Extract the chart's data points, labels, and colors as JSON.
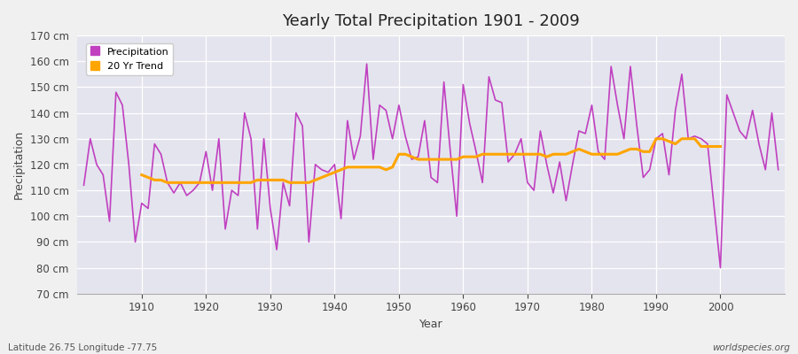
{
  "title": "Yearly Total Precipitation 1901 - 2009",
  "xlabel": "Year",
  "ylabel": "Precipitation",
  "footer_left": "Latitude 26.75 Longitude -77.75",
  "footer_right": "worldspecies.org",
  "ylim": [
    70,
    170
  ],
  "ytick_step": 10,
  "years": [
    1901,
    1902,
    1903,
    1904,
    1905,
    1906,
    1907,
    1908,
    1909,
    1910,
    1911,
    1912,
    1913,
    1914,
    1915,
    1916,
    1917,
    1918,
    1919,
    1920,
    1921,
    1922,
    1923,
    1924,
    1925,
    1926,
    1927,
    1928,
    1929,
    1930,
    1931,
    1932,
    1933,
    1934,
    1935,
    1936,
    1937,
    1938,
    1939,
    1940,
    1941,
    1942,
    1943,
    1944,
    1945,
    1946,
    1947,
    1948,
    1949,
    1950,
    1951,
    1952,
    1953,
    1954,
    1955,
    1956,
    1957,
    1958,
    1959,
    1960,
    1961,
    1962,
    1963,
    1964,
    1965,
    1966,
    1967,
    1968,
    1969,
    1970,
    1971,
    1972,
    1973,
    1974,
    1975,
    1976,
    1977,
    1978,
    1979,
    1980,
    1981,
    1982,
    1983,
    1984,
    1985,
    1986,
    1987,
    1988,
    1989,
    1990,
    1991,
    1992,
    1993,
    1994,
    1995,
    1996,
    1997,
    1998,
    1999,
    2000,
    2001,
    2002,
    2003,
    2004,
    2005,
    2006,
    2007,
    2008,
    2009
  ],
  "precip": [
    112,
    130,
    120,
    116,
    98,
    148,
    143,
    120,
    90,
    105,
    103,
    128,
    124,
    113,
    109,
    113,
    108,
    110,
    113,
    125,
    110,
    130,
    95,
    110,
    108,
    140,
    130,
    95,
    130,
    103,
    87,
    113,
    104,
    140,
    135,
    90,
    120,
    118,
    117,
    120,
    99,
    137,
    122,
    131,
    159,
    122,
    143,
    141,
    130,
    143,
    131,
    122,
    123,
    137,
    115,
    113,
    152,
    125,
    100,
    151,
    136,
    125,
    113,
    154,
    145,
    144,
    121,
    124,
    130,
    113,
    110,
    133,
    120,
    109,
    121,
    106,
    120,
    133,
    132,
    143,
    125,
    122,
    158,
    143,
    130,
    158,
    135,
    115,
    118,
    130,
    132,
    116,
    141,
    155,
    130,
    131,
    130,
    128,
    104,
    80,
    147,
    140,
    133,
    130,
    141,
    128,
    118,
    140,
    118
  ],
  "trend_years": [
    1910,
    1911,
    1912,
    1913,
    1914,
    1915,
    1916,
    1917,
    1918,
    1919,
    1920,
    1921,
    1922,
    1923,
    1924,
    1925,
    1926,
    1927,
    1928,
    1929,
    1930,
    1931,
    1932,
    1933,
    1934,
    1935,
    1936,
    1937,
    1938,
    1939,
    1940,
    1941,
    1942,
    1943,
    1944,
    1945,
    1946,
    1947,
    1948,
    1949,
    1950,
    1951,
    1952,
    1953,
    1954,
    1955,
    1956,
    1957,
    1958,
    1959,
    1960,
    1961,
    1962,
    1963,
    1964,
    1965,
    1966,
    1967,
    1968,
    1969,
    1970,
    1971,
    1972,
    1973,
    1974,
    1975,
    1976,
    1977,
    1978,
    1979,
    1980,
    1981,
    1982,
    1983,
    1984,
    1985,
    1986,
    1987,
    1988,
    1989,
    1990,
    1991,
    1992,
    1993,
    1994,
    1995,
    1996,
    1997,
    1998,
    1999,
    2000
  ],
  "trend": [
    116,
    115,
    114,
    114,
    113,
    113,
    113,
    113,
    113,
    113,
    113,
    113,
    113,
    113,
    113,
    113,
    113,
    113,
    114,
    114,
    114,
    114,
    114,
    113,
    113,
    113,
    113,
    114,
    115,
    116,
    117,
    118,
    119,
    119,
    119,
    119,
    119,
    119,
    118,
    119,
    124,
    124,
    123,
    122,
    122,
    122,
    122,
    122,
    122,
    122,
    123,
    123,
    123,
    124,
    124,
    124,
    124,
    124,
    124,
    124,
    124,
    124,
    124,
    123,
    124,
    124,
    124,
    125,
    126,
    125,
    124,
    124,
    124,
    124,
    124,
    125,
    126,
    126,
    125,
    125,
    130,
    130,
    129,
    128,
    130,
    130,
    130,
    127,
    127,
    127,
    127
  ],
  "precip_color": "#C040C0",
  "trend_color": "#FFA500",
  "bg_color": "#F0F0F0",
  "plot_bg": "#E4E4EE",
  "grid_color": "#FFFFFF",
  "tick_color": "#444444",
  "spine_color": "#AAAAAA"
}
